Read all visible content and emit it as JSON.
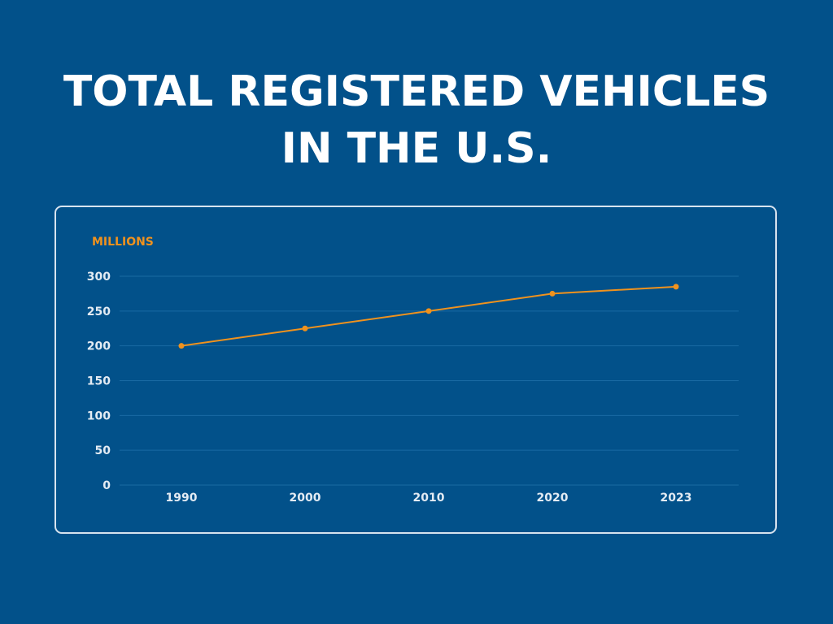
{
  "title_lines": [
    "TOTAL REGISTERED VEHICLES",
    "IN THE U.S."
  ],
  "colors": {
    "background": "#02518a",
    "line": "#f0921d",
    "unit_label": "#f0921d",
    "gridline": "#1a6aa3",
    "tick_text": "#e3ebf3",
    "panel_border": "#d7e3ef"
  },
  "chart_data": {
    "type": "line",
    "title": "TOTAL REGISTERED VEHICLES IN THE U.S.",
    "ylabel": "MILLIONS",
    "xlabel": "",
    "categories": [
      "1990",
      "2000",
      "2010",
      "2020",
      "2023"
    ],
    "series": [
      {
        "values": [
          200,
          225,
          250,
          275,
          285
        ]
      }
    ],
    "ylim": [
      0,
      300
    ],
    "yticks": [
      0,
      50,
      100,
      150,
      200,
      250,
      300
    ],
    "grid": true,
    "legend": "none"
  }
}
